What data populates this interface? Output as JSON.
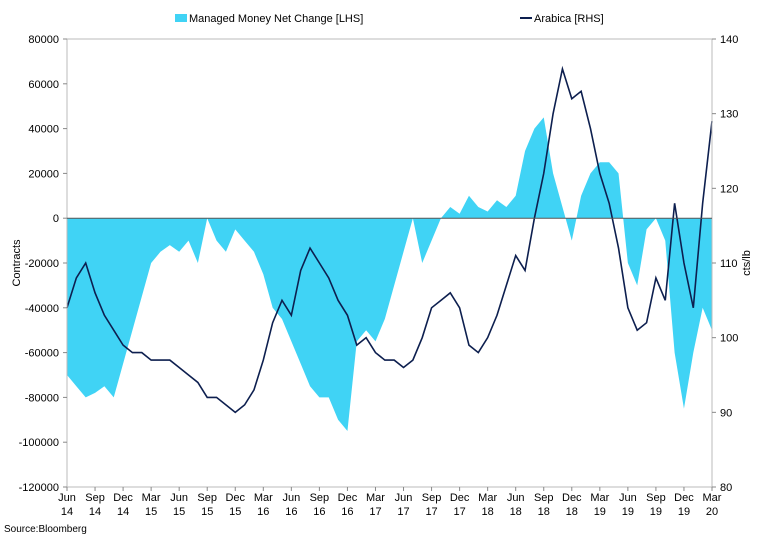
{
  "chart_data": {
    "type": "area_line",
    "source": "Source:Bloomberg",
    "ylabel": "Contracts",
    "y2label": "cts/lb",
    "categories": [
      "Jun 14",
      null,
      null,
      "Sep 14",
      null,
      null,
      "Dec 14",
      null,
      null,
      "Mar 15",
      null,
      null,
      "Jun 15",
      null,
      null,
      "Sep 15",
      null,
      null,
      "Dec 15",
      null,
      null,
      "Mar 16",
      null,
      null,
      "Jun 16",
      null,
      null,
      "Sep 16",
      null,
      null,
      "Dec 16",
      null,
      null,
      "Mar 17",
      null,
      null,
      "Jun 17",
      null,
      null,
      "Sep 17",
      null,
      null,
      "Dec 17",
      null,
      null,
      "Mar 18",
      null,
      null,
      "Jun 18",
      null,
      null,
      "Sep 18",
      null,
      null,
      "Dec 18",
      null,
      null,
      "Mar 19",
      null,
      null,
      "Jun 19",
      null,
      null,
      "Sep 19",
      null,
      null,
      "Dec 19",
      null,
      null,
      "Mar 20"
    ],
    "series": [
      {
        "name": "Managed Money Net Change [LHS]",
        "color": "#40d3f5",
        "style": "area",
        "axis": "y",
        "values": [
          -70000,
          -75000,
          -80000,
          -78000,
          -75000,
          -80000,
          -65000,
          -50000,
          -35000,
          -20000,
          -15000,
          -12000,
          -15000,
          -10000,
          -20000,
          0,
          -10000,
          -15000,
          -5000,
          -10000,
          -15000,
          -25000,
          -40000,
          -45000,
          -55000,
          -65000,
          -75000,
          -80000,
          -80000,
          -90000,
          -95000,
          -55000,
          -50000,
          -55000,
          -45000,
          -30000,
          -15000,
          0,
          -20000,
          -10000,
          0,
          5000,
          2000,
          10000,
          5000,
          3000,
          8000,
          5000,
          10000,
          30000,
          40000,
          45000,
          20000,
          5000,
          -10000,
          10000,
          20000,
          25000,
          25000,
          20000,
          -20000,
          -30000,
          -5000,
          0,
          -10000,
          -60000,
          -85000,
          -60000,
          -40000,
          -50000
        ]
      },
      {
        "name": "Arabica [RHS]",
        "color": "#0d1f4f",
        "style": "line",
        "axis": "y2",
        "values": [
          104,
          108,
          110,
          106,
          103,
          101,
          99,
          98,
          98,
          97,
          97,
          97,
          96,
          95,
          94,
          92,
          92,
          91,
          90,
          91,
          93,
          97,
          102,
          105,
          103,
          109,
          112,
          110,
          108,
          105,
          103,
          99,
          100,
          98,
          97,
          97,
          96,
          97,
          100,
          104,
          105,
          106,
          104,
          99,
          98,
          100,
          103,
          107,
          111,
          109,
          116,
          122,
          130,
          136,
          132,
          133,
          128,
          122,
          118,
          112,
          104,
          101,
          102,
          108,
          105,
          118,
          110,
          104,
          118,
          129
        ]
      }
    ],
    "ylim": [
      -120000,
      80000
    ],
    "yticks": [
      -120000,
      -100000,
      -80000,
      -60000,
      -40000,
      -20000,
      0,
      20000,
      40000,
      60000,
      80000
    ],
    "y2lim": [
      80,
      140
    ],
    "y2ticks": [
      80,
      90,
      100,
      110,
      120,
      130,
      140
    ],
    "legend": "top"
  }
}
